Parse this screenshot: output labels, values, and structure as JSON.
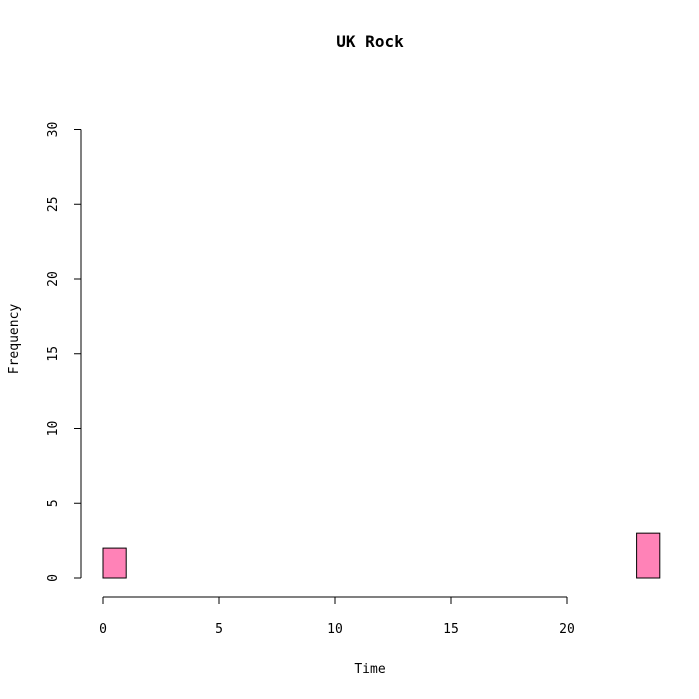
{
  "chart_data": {
    "type": "bar",
    "title": "UK Rock",
    "xlabel": "Time",
    "ylabel": "Frequency",
    "xlim": [
      0,
      24
    ],
    "ylim": [
      0,
      30
    ],
    "x_ticks": [
      0,
      5,
      10,
      15,
      20
    ],
    "y_ticks": [
      0,
      5,
      10,
      15,
      20,
      25,
      30
    ],
    "bin_width": 1,
    "bins": [
      0,
      1,
      2,
      3,
      4,
      5,
      6,
      7,
      8,
      9,
      10,
      11,
      12,
      13,
      14,
      15,
      16,
      17,
      18,
      19,
      20,
      21,
      22,
      23
    ],
    "values": [
      2,
      0,
      0,
      0,
      0,
      0,
      0,
      0,
      0,
      0,
      0,
      0,
      0,
      0,
      0,
      0,
      0,
      0,
      0,
      0,
      0,
      0,
      0,
      3
    ],
    "bar_color": "#ff82b7",
    "edge_color": "#000000",
    "grid": false,
    "legend": "none"
  }
}
